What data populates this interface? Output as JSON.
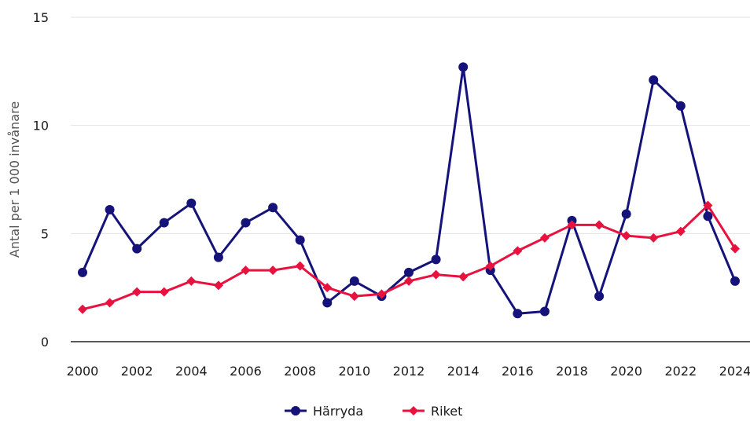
{
  "chart_data": {
    "type": "line",
    "title": "",
    "xlabel": "",
    "ylabel": "Antal per 1 000 invånare",
    "ylim": [
      0,
      15
    ],
    "yticks": [
      0,
      5,
      10,
      15
    ],
    "xlim": [
      2000,
      2024
    ],
    "xticks": [
      2000,
      2002,
      2004,
      2006,
      2008,
      2010,
      2012,
      2014,
      2016,
      2018,
      2020,
      2022,
      2024
    ],
    "grid": true,
    "legend_position": "bottom-center",
    "x": [
      2000,
      2001,
      2002,
      2003,
      2004,
      2005,
      2006,
      2007,
      2008,
      2009,
      2010,
      2011,
      2012,
      2013,
      2014,
      2015,
      2016,
      2017,
      2018,
      2019,
      2020,
      2021,
      2022,
      2023,
      2024
    ],
    "series": [
      {
        "name": "Härryda",
        "color": "#15137a",
        "marker": "circle",
        "values": [
          3.2,
          6.1,
          4.3,
          5.5,
          6.4,
          3.9,
          5.5,
          6.2,
          4.7,
          1.8,
          2.8,
          2.1,
          3.2,
          3.8,
          12.7,
          3.3,
          1.3,
          1.4,
          5.6,
          2.1,
          5.9,
          12.1,
          10.9,
          5.8,
          2.8
        ]
      },
      {
        "name": "Riket",
        "color": "#e8123f",
        "marker": "diamond",
        "values": [
          1.5,
          1.8,
          2.3,
          2.3,
          2.8,
          2.6,
          3.3,
          3.3,
          3.5,
          2.5,
          2.1,
          2.2,
          2.8,
          3.1,
          3.0,
          3.5,
          4.2,
          4.8,
          5.4,
          5.4,
          4.9,
          4.8,
          5.1,
          6.3,
          4.3
        ]
      }
    ]
  }
}
